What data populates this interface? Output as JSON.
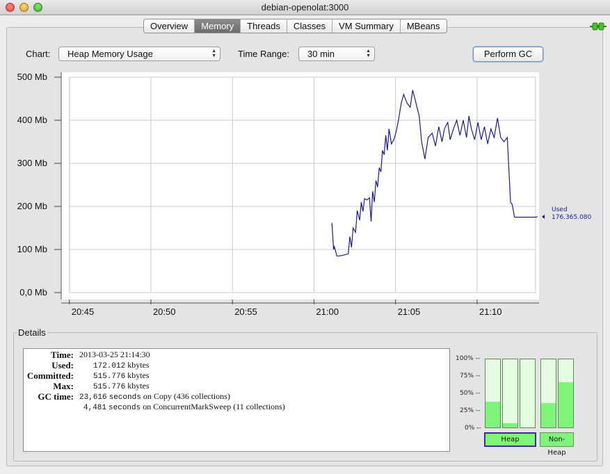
{
  "window": {
    "title": "debian-openolat:3000"
  },
  "tabs": [
    {
      "label": "Overview"
    },
    {
      "label": "Memory",
      "active": true
    },
    {
      "label": "Threads"
    },
    {
      "label": "Classes"
    },
    {
      "label": "VM Summary"
    },
    {
      "label": "MBeans"
    }
  ],
  "controls": {
    "chart_label": "Chart:",
    "chart_value": "Heap Memory Usage",
    "range_label": "Time Range:",
    "range_value": "30 min",
    "gc_button": "Perform GC"
  },
  "chart_data": {
    "type": "line",
    "yticks": [
      "0,0 Mb",
      "100 Mb",
      "200 Mb",
      "300 Mb",
      "400 Mb",
      "500 Mb"
    ],
    "ylim": [
      0,
      500
    ],
    "xticks": [
      "20:45",
      "20:50",
      "20:55",
      "21:00",
      "21:05",
      "21:10"
    ],
    "xtick_minutes": [
      45,
      50,
      55,
      60,
      65,
      70
    ],
    "xlim_minutes": [
      44.5,
      73.8
    ],
    "grid": true,
    "series": [
      {
        "name": "Used",
        "color": "#1a1a9c",
        "value_label": "176.365.080",
        "x": [
          61.1,
          61.2,
          61.25,
          61.4,
          61.5,
          61.7,
          61.9,
          62.1,
          62.2,
          62.3,
          62.4,
          62.55,
          62.65,
          62.8,
          62.9,
          63.0,
          63.1,
          63.25,
          63.4,
          63.5,
          63.6,
          63.7,
          63.8,
          63.9,
          64.0,
          64.1,
          64.2,
          64.3,
          64.4,
          64.5,
          64.6,
          64.75,
          64.9,
          65.05,
          65.2,
          65.35,
          65.5,
          65.7,
          65.9,
          66.05,
          66.25,
          66.45,
          66.6,
          66.8,
          67.0,
          67.25,
          67.45,
          67.65,
          67.85,
          68.0,
          68.2,
          68.35,
          68.55,
          68.75,
          68.95,
          69.15,
          69.35,
          69.5,
          69.65,
          69.85,
          70.05,
          70.25,
          70.45,
          70.65,
          70.85,
          71.05,
          71.25,
          71.45,
          71.65,
          71.85,
          72.05,
          72.15,
          72.3,
          72.55,
          72.75,
          73.0,
          73.25,
          73.55,
          73.7
        ],
        "y": [
          162,
          100,
          107,
          85,
          85,
          86,
          88,
          90,
          130,
          105,
          150,
          140,
          190,
          168,
          210,
          188,
          218,
          215,
          220,
          165,
          235,
          210,
          260,
          245,
          290,
          280,
          330,
          320,
          365,
          330,
          380,
          345,
          355,
          375,
          405,
          440,
          460,
          440,
          430,
          470,
          440,
          410,
          350,
          310,
          360,
          370,
          340,
          385,
          350,
          380,
          395,
          355,
          380,
          400,
          365,
          400,
          360,
          410,
          380,
          355,
          395,
          355,
          385,
          345,
          380,
          360,
          405,
          360,
          350,
          360,
          210,
          205,
          175,
          175,
          175,
          175,
          175,
          175,
          176
        ]
      }
    ]
  },
  "details": {
    "legend": "Details",
    "rows": [
      {
        "label": "Time:",
        "value": "2013-03-25 21:14:30"
      },
      {
        "label": "Used:",
        "num": "172.012",
        "unit": "kbytes"
      },
      {
        "label": "Committed:",
        "num": "515.776",
        "unit": "kbytes"
      },
      {
        "label": "Max:",
        "num": "515.776",
        "unit": "kbytes"
      }
    ],
    "gc_label": "GC time:",
    "gc": [
      {
        "num": "23,616",
        "word": "seconds",
        "rest": "on Copy (436 collections)"
      },
      {
        "num": "4,481",
        "word": "seconds",
        "rest": "on ConcurrentMarkSweep (11 collections)"
      }
    ]
  },
  "pools": {
    "pct_labels": [
      "100% --",
      "75% --",
      "50% --",
      "25% --",
      "0% --"
    ],
    "bars": [
      {
        "fill_pct": 38,
        "group": "heap"
      },
      {
        "fill_pct": 6,
        "group": "heap"
      },
      {
        "fill_pct": 0,
        "group": "heap"
      },
      {
        "fill_pct": 36,
        "group": "nonheap"
      },
      {
        "fill_pct": 66,
        "group": "nonheap"
      }
    ],
    "heap_label": "Heap",
    "nonheap_label": "Non-Heap"
  }
}
